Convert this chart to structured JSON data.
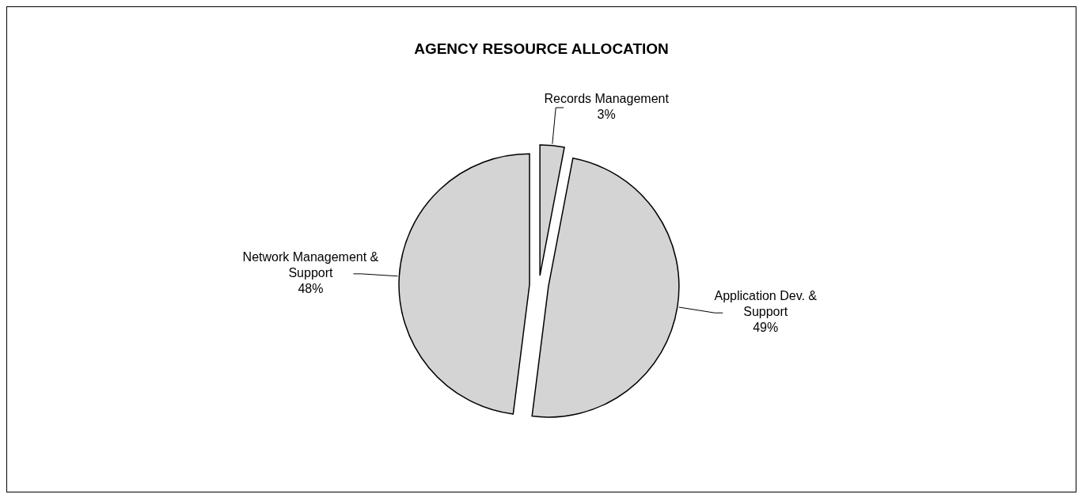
{
  "chart_data": {
    "type": "pie",
    "title": "AGENCY RESOURCE ALLOCATION",
    "categories": [
      "Records Management",
      "Application Dev. & Support",
      "Network Management & Support"
    ],
    "values": [
      3,
      49,
      48
    ],
    "value_labels": [
      "3%",
      "49%",
      "48%"
    ],
    "colors": [
      "#d4d4d4",
      "#d4d4d4",
      "#d4d4d4"
    ]
  }
}
